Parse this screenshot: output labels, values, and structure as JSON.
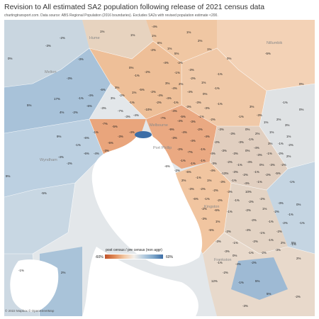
{
  "title": "Revision to All estimated SA2 population following release of 2021 census data",
  "subtitle": "chartingtransport.com. Data source: ABS Regional Population (2016 boundaries). Excludes SA2s with revised population estimate <200.",
  "attribution": "© 2022 Mapbox © OpenStreetMap",
  "legend": {
    "title": "post census / pre census (non aggr)",
    "min": "-60%",
    "max": "60%"
  },
  "colors": {
    "negative_strong": "#c0522a",
    "negative_light": "#f3c9a5",
    "neutral": "#f3efea",
    "positive_light": "#b7cde0",
    "positive_strong": "#3d6ea6",
    "water": "#ffffff",
    "background": "#dde3e6"
  },
  "place_labels": [
    "Hume",
    "Nillumbik",
    "Melton",
    "Wyndham",
    "Melbourne",
    "Port Phillip",
    "Kingston",
    "Frankston"
  ],
  "region_labels": [
    "1%",
    "-4%",
    "1%",
    "-3%",
    "-2%",
    "1%",
    "2%",
    "-5%",
    "5%",
    "1%",
    "-3%",
    "-2%",
    "6%",
    "0%",
    "-4%",
    "-2%",
    "0%",
    "0%",
    "1%",
    "-1%",
    "-1%",
    "-2%",
    "-3%",
    "-2%",
    "-1%",
    "-3%",
    "1%",
    "3%",
    "3%",
    "-4%",
    "2%",
    "-1%",
    "17%",
    "-1%",
    "-4%",
    "-6%",
    "-5%",
    "-2%",
    "-4%",
    "-4%",
    "0%",
    "-1%",
    "5%",
    "0%",
    "3%",
    "-2%",
    "-2%",
    "-4%",
    "-1%",
    "-6%",
    "-10%",
    "-3%",
    "-4%",
    "-3%",
    "-3%",
    "-3%",
    "-1%",
    "3%",
    "-2%",
    "-7%",
    "-3%",
    "-4%",
    "-7%",
    "-5%",
    "-3%",
    "-1%",
    "-2%",
    "-1%",
    "-3%",
    "1%",
    "2%",
    "3%",
    "-7%",
    "-5%",
    "-9%",
    "-4%",
    "-2%",
    "-3%",
    "-3%",
    "0%",
    "2%",
    "1%",
    "1%",
    "-1%",
    "-3%",
    "-4%",
    "-3%",
    "-4%",
    "-4%",
    "-6%",
    "-5%",
    "-2%",
    "-3%",
    "-1%",
    "3%",
    "-1%",
    "-2%",
    "9%",
    "-1%",
    "-6%",
    "-4%",
    "-3%",
    "-2%",
    "-7%",
    "-1%",
    "-4%",
    "-3%",
    "-3%",
    "0%",
    "-3%",
    "-1%",
    "-2%",
    "2%",
    "-4%",
    "-2%",
    "-1%",
    "-1%",
    "-1%",
    "-3%",
    "-2%",
    "-1%",
    "-4%",
    "-6%",
    "0%",
    "-3%",
    "-2%",
    "-2%",
    "-6%",
    "-4%",
    "-13%",
    "-3%",
    "-2%",
    "-1%",
    "-2%",
    "-5%",
    "-1%",
    "2%",
    "1%",
    "-3%",
    "-1%",
    "-4%",
    "-1%",
    "-1%",
    "-3%",
    "-2%",
    "-2%",
    "-3%",
    "10%",
    "9%",
    "-5%",
    "-6%",
    "-1%",
    "-2%",
    "-1%",
    "-2%",
    "-2%",
    "-3%",
    "0%",
    "-2%",
    "-6%",
    "-1%",
    "-2%",
    "1%",
    "-2%",
    "-1%",
    "-3%",
    "1%",
    "-2%",
    "-1%",
    "-2%",
    "-5%",
    "-2%",
    "-4%",
    "-1%",
    "-2%",
    "-3%",
    "-1%",
    "-2%",
    "-1%",
    "2%",
    "5%",
    "-1%",
    "-3%",
    "0%",
    "-1%",
    "-2%",
    "-3%",
    "-1%",
    "-4%",
    "-2%",
    "-2%",
    "-1%",
    "2%",
    "5%",
    "12%",
    "-1%",
    "-1%",
    "2%",
    "5%",
    "1%",
    "0%",
    "4%",
    "-4%",
    "1%",
    "-3%",
    "-2%",
    "-4%",
    "-1%",
    "-3%",
    "-1%",
    "-1%"
  ],
  "region_colors": [
    {
      "value_pct": -6,
      "color": "#e8a27a"
    },
    {
      "value_pct": -3,
      "color": "#f1c29e"
    },
    {
      "value_pct": 0,
      "color": "#f0e4d8"
    },
    {
      "value_pct": 3,
      "color": "#c7d6e2"
    },
    {
      "value_pct": 9,
      "color": "#9fbcd6"
    },
    {
      "value_pct": 17,
      "color": "#6f98c3"
    }
  ]
}
